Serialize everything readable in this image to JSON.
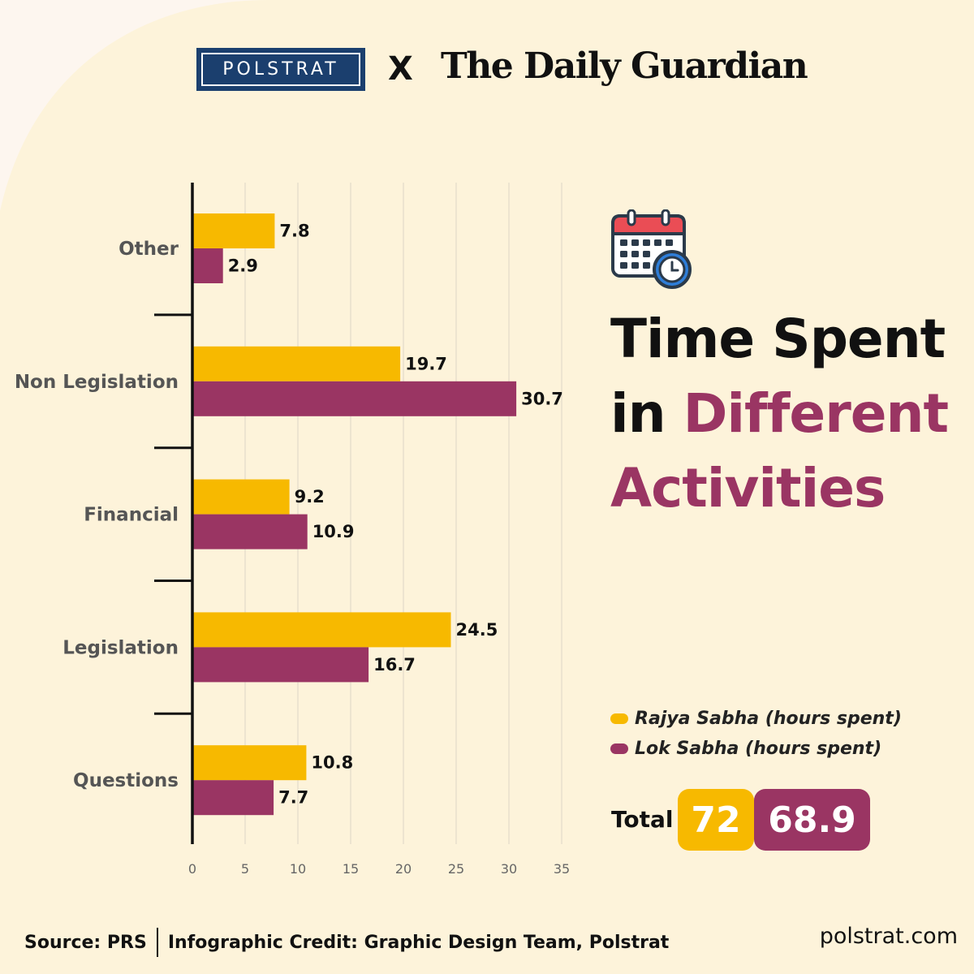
{
  "header": {
    "logo_left": "POLSTRAT",
    "cross": "X",
    "logo_right": "The Daily Guardian"
  },
  "title": {
    "line1": "Time Spent",
    "line2_plain": "in",
    "line2_accent": "Different",
    "line3_accent": "Activities"
  },
  "icons": {
    "calendar": "calendar-clock-icon"
  },
  "colors": {
    "rajya_sabha": "#f7b900",
    "lok_sabha": "#9a3563",
    "background": "#fdf6ef",
    "blob": "#fdf3da",
    "polstrat_navy": "#1b3f6e"
  },
  "chart_data": {
    "type": "bar",
    "orientation": "horizontal",
    "categories": [
      "Other",
      "Non Legislation",
      "Financial",
      "Legislation",
      "Questions"
    ],
    "series": [
      {
        "name": "Rajya Sabha (hours spent)",
        "values": [
          7.8,
          19.7,
          9.2,
          24.5,
          10.8
        ]
      },
      {
        "name": "Lok Sabha (hours spent)",
        "values": [
          2.9,
          30.7,
          10.9,
          16.7,
          7.7
        ]
      }
    ],
    "xlim": [
      0,
      35
    ],
    "xticks": [
      0,
      5,
      10,
      15,
      20,
      25,
      30,
      35
    ],
    "grid": true,
    "legend_position": "right"
  },
  "legend": {
    "rajya_sabha": "Rajya Sabha (hours spent)",
    "lok_sabha": "Lok Sabha (hours spent)"
  },
  "totals": {
    "label": "Total",
    "rajya_sabha": "72",
    "lok_sabha": "68.9"
  },
  "footer": {
    "source": "Source: PRS",
    "credit": "Infographic Credit: Graphic Design Team, Polstrat",
    "website": "polstrat.com"
  }
}
